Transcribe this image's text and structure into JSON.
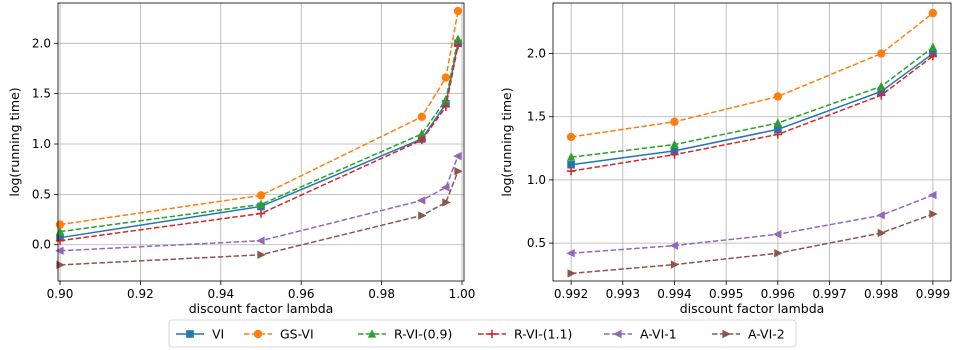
{
  "chart_data": [
    {
      "type": "line",
      "xlabel": "discount factor lambda",
      "ylabel": "log(running time)",
      "xlim": [
        0.8995,
        1.0005
      ],
      "ylim": [
        -0.36,
        2.4
      ],
      "xticks": [
        0.9,
        0.92,
        0.94,
        0.96,
        0.98,
        1.0
      ],
      "xtick_labels": [
        "0.90",
        "0.92",
        "0.94",
        "0.96",
        "0.98",
        "1.00"
      ],
      "yticks": [
        0.0,
        0.5,
        1.0,
        1.5,
        2.0
      ],
      "ytick_labels": [
        "0.0",
        "0.5",
        "1.0",
        "1.5",
        "2.0"
      ],
      "grid": true,
      "x": [
        0.9,
        0.95,
        0.99,
        0.996,
        0.999
      ],
      "series": [
        {
          "name": "VI",
          "values": [
            0.07,
            0.38,
            1.05,
            1.4,
            2.0
          ]
        },
        {
          "name": "GS-VI",
          "values": [
            0.2,
            0.49,
            1.27,
            1.66,
            2.32
          ]
        },
        {
          "name": "R-VI-(0.9)",
          "values": [
            0.13,
            0.4,
            1.1,
            1.44,
            2.04
          ]
        },
        {
          "name": "R-VI-(1.1)",
          "values": [
            0.04,
            0.31,
            1.04,
            1.37,
            1.98
          ]
        },
        {
          "name": "A-VI-1",
          "values": [
            -0.06,
            0.04,
            0.44,
            0.57,
            0.88
          ]
        },
        {
          "name": "A-VI-2",
          "values": [
            -0.2,
            -0.1,
            0.29,
            0.42,
            0.73
          ]
        }
      ]
    },
    {
      "type": "line",
      "xlabel": "discount factor lambda",
      "ylabel": "log(running time)",
      "xlim": [
        0.99165,
        0.99935
      ],
      "ylim": [
        0.2,
        2.4
      ],
      "xticks": [
        0.992,
        0.993,
        0.994,
        0.995,
        0.996,
        0.997,
        0.998,
        0.999
      ],
      "xtick_labels": [
        "0.992",
        "0.993",
        "0.994",
        "0.995",
        "0.996",
        "0.997",
        "0.998",
        "0.999"
      ],
      "yticks": [
        0.5,
        1.0,
        1.5,
        2.0
      ],
      "ytick_labels": [
        "0.5",
        "1.0",
        "1.5",
        "2.0"
      ],
      "grid": true,
      "x": [
        0.992,
        0.994,
        0.996,
        0.998,
        0.999
      ],
      "series": [
        {
          "name": "VI",
          "values": [
            1.12,
            1.23,
            1.4,
            1.7,
            2.0
          ]
        },
        {
          "name": "GS-VI",
          "values": [
            1.34,
            1.46,
            1.66,
            2.0,
            2.32
          ]
        },
        {
          "name": "R-VI-(0.9)",
          "values": [
            1.18,
            1.28,
            1.45,
            1.74,
            2.05
          ]
        },
        {
          "name": "R-VI-(1.1)",
          "values": [
            1.07,
            1.2,
            1.36,
            1.67,
            1.98
          ]
        },
        {
          "name": "A-VI-1",
          "values": [
            0.42,
            0.48,
            0.57,
            0.72,
            0.88
          ]
        },
        {
          "name": "A-VI-2",
          "values": [
            0.26,
            0.33,
            0.42,
            0.58,
            0.73
          ]
        }
      ]
    }
  ],
  "styles": [
    {
      "name": "VI",
      "color": "#1f77b4",
      "dash": "solid",
      "marker": "square"
    },
    {
      "name": "GS-VI",
      "color": "#ff7f0e",
      "dash": "dashed",
      "marker": "circle"
    },
    {
      "name": "R-VI-(0.9)",
      "color": "#2ca02c",
      "dash": "dashed",
      "marker": "triangle-up"
    },
    {
      "name": "R-VI-(1.1)",
      "color": "#d62728",
      "dash": "dashed",
      "marker": "plus"
    },
    {
      "name": "A-VI-1",
      "color": "#9467bd",
      "dash": "dashed",
      "marker": "triangle-left"
    },
    {
      "name": "A-VI-2",
      "color": "#8c564b",
      "dash": "dashed",
      "marker": "triangle-right"
    }
  ],
  "legend": {
    "placement": "bottom-center",
    "entries": [
      "VI",
      "GS-VI",
      "R-VI-(0.9)",
      "R-VI-(1.1)",
      "A-VI-1",
      "A-VI-2"
    ]
  }
}
